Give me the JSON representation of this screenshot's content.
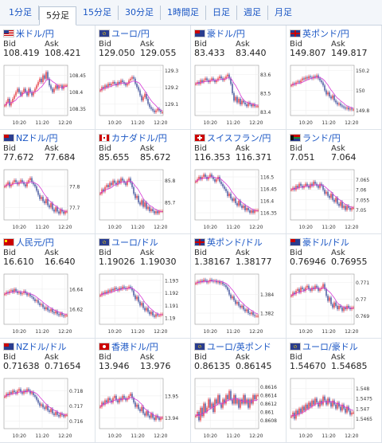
{
  "tabs": [
    {
      "label": "1分足",
      "active": false
    },
    {
      "label": "5分足",
      "active": true
    },
    {
      "label": "15分足",
      "active": false
    },
    {
      "label": "30分足",
      "active": false
    },
    {
      "label": "1時間足",
      "active": false
    },
    {
      "label": "日足",
      "active": false
    },
    {
      "label": "週足",
      "active": false
    },
    {
      "label": "月足",
      "active": false
    }
  ],
  "labels": {
    "bid": "Bid",
    "ask": "Ask"
  },
  "x_ticks": [
    "10:20",
    "11:20",
    "12:20"
  ],
  "colors": {
    "up": "#e0242c",
    "down": "#2a3d8f",
    "ma": "#d63ad6",
    "link": "#1a56c4"
  },
  "pairs": [
    {
      "title": "米ドル/円",
      "flag": "us",
      "bid": "108.419",
      "ask": "108.421",
      "y_ticks": [
        "108.45",
        "108.4",
        "108.35"
      ],
      "ylim": [
        108.33,
        108.48
      ],
      "closes": [
        108.36,
        108.37,
        108.38,
        108.36,
        108.37,
        108.38,
        108.39,
        108.4,
        108.41,
        108.4,
        108.39,
        108.4,
        108.41,
        108.4,
        108.39,
        108.41,
        108.4,
        108.39,
        108.4,
        108.41,
        108.42,
        108.43,
        108.44,
        108.43,
        108.45,
        108.44,
        108.46,
        108.44,
        108.42,
        108.41,
        108.4,
        108.41,
        108.42,
        108.41,
        108.42,
        108.42,
        108.41,
        108.42,
        108.42,
        108.42
      ]
    },
    {
      "title": "ユーロ/円",
      "flag": "eu",
      "bid": "129.050",
      "ask": "129.055",
      "y_ticks": [
        "129.3",
        "129.2",
        "129.1"
      ],
      "ylim": [
        129.03,
        129.33
      ],
      "closes": [
        129.18,
        129.2,
        129.19,
        129.21,
        129.2,
        129.22,
        129.21,
        129.22,
        129.23,
        129.22,
        129.21,
        129.23,
        129.22,
        129.24,
        129.23,
        129.22,
        129.21,
        129.22,
        129.24,
        129.25,
        129.26,
        129.25,
        129.22,
        129.2,
        129.18,
        129.15,
        129.12,
        129.14,
        129.16,
        129.13,
        129.1,
        129.08,
        129.07,
        129.06,
        129.05,
        129.06,
        129.07,
        129.06,
        129.05,
        129.05
      ]
    },
    {
      "title": "豪ドル/円",
      "flag": "au",
      "bid": "83.433",
      "ask": "83.440",
      "y_ticks": [
        "83.6",
        "83.5",
        "83.4"
      ],
      "ylim": [
        83.38,
        83.65
      ],
      "closes": [
        83.55,
        83.56,
        83.55,
        83.57,
        83.56,
        83.57,
        83.58,
        83.57,
        83.56,
        83.57,
        83.58,
        83.57,
        83.56,
        83.57,
        83.58,
        83.59,
        83.58,
        83.57,
        83.58,
        83.59,
        83.6,
        83.58,
        83.55,
        83.5,
        83.46,
        83.48,
        83.45,
        83.47,
        83.44,
        83.46,
        83.45,
        83.44,
        83.43,
        83.45,
        83.44,
        83.43,
        83.44,
        83.43,
        83.43,
        83.43
      ]
    },
    {
      "title": "英ポンド/円",
      "flag": "gb",
      "bid": "149.807",
      "ask": "149.817",
      "y_ticks": [
        "150.2",
        "150",
        "149.8"
      ],
      "ylim": [
        149.75,
        150.25
      ],
      "closes": [
        150.05,
        150.07,
        150.06,
        150.08,
        150.09,
        150.08,
        150.1,
        150.12,
        150.11,
        150.13,
        150.12,
        150.14,
        150.13,
        150.12,
        150.14,
        150.13,
        150.15,
        150.12,
        150.1,
        150.08,
        150.05,
        150.0,
        149.96,
        149.98,
        149.94,
        149.92,
        149.95,
        149.9,
        149.88,
        149.86,
        149.87,
        149.85,
        149.84,
        149.83,
        149.82,
        149.83,
        149.81,
        149.82,
        149.81,
        149.81
      ]
    },
    {
      "title": "NZドル/円",
      "flag": "nz",
      "bid": "77.672",
      "ask": "77.684",
      "y_ticks": [
        "77.8",
        "77.7"
      ],
      "ylim": [
        77.64,
        77.88
      ],
      "closes": [
        77.8,
        77.81,
        77.82,
        77.8,
        77.81,
        77.82,
        77.83,
        77.82,
        77.81,
        77.82,
        77.83,
        77.82,
        77.81,
        77.8,
        77.82,
        77.83,
        77.84,
        77.82,
        77.81,
        77.8,
        77.78,
        77.76,
        77.74,
        77.75,
        77.73,
        77.72,
        77.74,
        77.71,
        77.7,
        77.72,
        77.69,
        77.68,
        77.7,
        77.68,
        77.67,
        77.69,
        77.68,
        77.67,
        77.68,
        77.68
      ]
    },
    {
      "title": "カナダドル/円",
      "flag": "ca",
      "bid": "85.655",
      "ask": "85.672",
      "y_ticks": [
        "85.8",
        "85.7"
      ],
      "ylim": [
        85.62,
        85.85
      ],
      "closes": [
        85.74,
        85.76,
        85.75,
        85.77,
        85.78,
        85.77,
        85.79,
        85.78,
        85.8,
        85.79,
        85.78,
        85.8,
        85.79,
        85.81,
        85.8,
        85.79,
        85.78,
        85.8,
        85.81,
        85.79,
        85.77,
        85.74,
        85.72,
        85.73,
        85.7,
        85.69,
        85.71,
        85.68,
        85.7,
        85.67,
        85.68,
        85.66,
        85.67,
        85.66,
        85.65,
        85.66,
        85.65,
        85.66,
        85.66,
        85.66
      ]
    },
    {
      "title": "スイスフラン/円",
      "flag": "ch",
      "bid": "116.353",
      "ask": "116.371",
      "y_ticks": [
        "116.5",
        "116.45",
        "116.4",
        "116.35"
      ],
      "ylim": [
        116.32,
        116.53
      ],
      "closes": [
        116.48,
        116.49,
        116.5,
        116.49,
        116.5,
        116.51,
        116.5,
        116.49,
        116.5,
        116.51,
        116.5,
        116.49,
        116.48,
        116.49,
        116.5,
        116.48,
        116.47,
        116.46,
        116.45,
        116.44,
        116.42,
        116.43,
        116.41,
        116.4,
        116.41,
        116.39,
        116.38,
        116.4,
        116.38,
        116.37,
        116.38,
        116.36,
        116.37,
        116.36,
        116.35,
        116.36,
        116.35,
        116.36,
        116.36,
        116.36
      ]
    },
    {
      "title": "ランド/円",
      "flag": "za",
      "bid": "7.051",
      "ask": "7.064",
      "y_ticks": [
        "7.065",
        "7.06",
        "7.055",
        "7.05"
      ],
      "ylim": [
        7.045,
        7.07
      ],
      "closes": [
        7.06,
        7.061,
        7.06,
        7.062,
        7.061,
        7.063,
        7.062,
        7.061,
        7.062,
        7.063,
        7.062,
        7.061,
        7.063,
        7.062,
        7.064,
        7.063,
        7.062,
        7.061,
        7.063,
        7.062,
        7.06,
        7.058,
        7.059,
        7.057,
        7.056,
        7.058,
        7.055,
        7.054,
        7.056,
        7.053,
        7.052,
        7.054,
        7.051,
        7.052,
        7.05,
        7.052,
        7.051,
        7.05,
        7.051,
        7.051
      ]
    },
    {
      "title": "人民元/円",
      "flag": "cn",
      "bid": "16.610",
      "ask": "16.640",
      "y_ticks": [
        "16.64",
        "16.62"
      ],
      "ylim": [
        16.605,
        16.655
      ],
      "closes": [
        16.635,
        16.637,
        16.636,
        16.638,
        16.639,
        16.637,
        16.64,
        16.638,
        16.636,
        16.637,
        16.635,
        16.636,
        16.638,
        16.636,
        16.634,
        16.635,
        16.633,
        16.632,
        16.63,
        16.628,
        16.629,
        16.626,
        16.624,
        16.625,
        16.622,
        16.62,
        16.622,
        16.619,
        16.618,
        16.62,
        16.617,
        16.616,
        16.618,
        16.615,
        16.614,
        16.616,
        16.614,
        16.613,
        16.614,
        16.614
      ]
    },
    {
      "title": "ユーロ/ドル",
      "flag": "eu",
      "bid": "1.19026",
      "ask": "1.19030",
      "y_ticks": [
        "1.193",
        "1.192",
        "1.191",
        "1.19"
      ],
      "ylim": [
        1.1895,
        1.1935
      ],
      "closes": [
        1.1918,
        1.192,
        1.1919,
        1.1921,
        1.192,
        1.1922,
        1.1921,
        1.1923,
        1.1922,
        1.1924,
        1.1923,
        1.1922,
        1.1924,
        1.1923,
        1.1925,
        1.1924,
        1.1923,
        1.1924,
        1.1925,
        1.1924,
        1.1922,
        1.1918,
        1.1915,
        1.1917,
        1.1913,
        1.191,
        1.1912,
        1.1908,
        1.1906,
        1.1908,
        1.1905,
        1.1903,
        1.1905,
        1.1902,
        1.1901,
        1.1903,
        1.1902,
        1.1902,
        1.1903,
        1.1903
      ]
    },
    {
      "title": "英ポンド/ドル",
      "flag": "gb",
      "bid": "1.38167",
      "ask": "1.38177",
      "y_ticks": [
        "1.384",
        "1.382"
      ],
      "ylim": [
        1.3808,
        1.3862
      ],
      "closes": [
        1.3852,
        1.3854,
        1.3853,
        1.3855,
        1.3854,
        1.3856,
        1.3855,
        1.3853,
        1.3854,
        1.3856,
        1.3855,
        1.3854,
        1.3855,
        1.3853,
        1.3854,
        1.3852,
        1.3853,
        1.3851,
        1.385,
        1.3848,
        1.3845,
        1.384,
        1.3836,
        1.3838,
        1.3834,
        1.383,
        1.3832,
        1.3828,
        1.3826,
        1.3828,
        1.3824,
        1.3822,
        1.3824,
        1.382,
        1.3819,
        1.3821,
        1.3818,
        1.3817,
        1.3817,
        1.3817
      ]
    },
    {
      "title": "豪ドル/ドル",
      "flag": "au",
      "bid": "0.76946",
      "ask": "0.76955",
      "y_ticks": [
        "0.771",
        "0.77",
        "0.769"
      ],
      "ylim": [
        0.7685,
        0.7715
      ],
      "closes": [
        0.7702,
        0.7704,
        0.7703,
        0.7705,
        0.7706,
        0.7704,
        0.7707,
        0.7706,
        0.7705,
        0.7707,
        0.7708,
        0.7706,
        0.7705,
        0.7707,
        0.7706,
        0.7708,
        0.7707,
        0.7705,
        0.7706,
        0.7707,
        0.7709,
        0.7706,
        0.7702,
        0.7699,
        0.7701,
        0.7697,
        0.7695,
        0.7698,
        0.7696,
        0.7694,
        0.7696,
        0.7695,
        0.7693,
        0.7695,
        0.7694,
        0.7696,
        0.7695,
        0.7694,
        0.7695,
        0.7695
      ]
    },
    {
      "title": "NZドル/ドル",
      "flag": "nz",
      "bid": "0.71638",
      "ask": "0.71654",
      "y_ticks": [
        "0.718",
        "0.717",
        "0.716"
      ],
      "ylim": [
        0.7155,
        0.7188
      ],
      "closes": [
        0.7176,
        0.7178,
        0.7177,
        0.7179,
        0.7178,
        0.718,
        0.7179,
        0.7178,
        0.718,
        0.7181,
        0.7179,
        0.7178,
        0.718,
        0.7179,
        0.7181,
        0.718,
        0.7178,
        0.7179,
        0.7177,
        0.7176,
        0.7174,
        0.7172,
        0.717,
        0.7171,
        0.7169,
        0.7168,
        0.717,
        0.7167,
        0.7166,
        0.7168,
        0.7165,
        0.7164,
        0.7166,
        0.7164,
        0.7163,
        0.7165,
        0.7164,
        0.7163,
        0.7164,
        0.7164
      ]
    },
    {
      "title": "香港ドル/円",
      "flag": "hk",
      "bid": "13.946",
      "ask": "13.976",
      "y_ticks": [
        "13.95",
        "13.94"
      ],
      "ylim": [
        13.935,
        13.958
      ],
      "closes": [
        13.945,
        13.947,
        13.946,
        13.948,
        13.947,
        13.949,
        13.948,
        13.947,
        13.949,
        13.95,
        13.948,
        13.947,
        13.949,
        13.948,
        13.95,
        13.949,
        13.948,
        13.949,
        13.95,
        13.951,
        13.949,
        13.947,
        13.945,
        13.946,
        13.944,
        13.943,
        13.945,
        13.942,
        13.941,
        13.943,
        13.941,
        13.94,
        13.942,
        13.94,
        13.939,
        13.941,
        13.94,
        13.939,
        13.94,
        13.94
      ]
    },
    {
      "title": "ユーロ/英ポンド",
      "flag": "eu",
      "bid": "0.86135",
      "ask": "0.86145",
      "y_ticks": [
        "0.8616",
        "0.8614",
        "0.8612",
        "0.861",
        "0.8608"
      ],
      "ylim": [
        0.8606,
        0.8618
      ],
      "closes": [
        0.8609,
        0.861,
        0.8608,
        0.8611,
        0.8609,
        0.8612,
        0.861,
        0.8611,
        0.8613,
        0.8611,
        0.8612,
        0.861,
        0.8613,
        0.8612,
        0.8614,
        0.8612,
        0.8611,
        0.8613,
        0.8612,
        0.8614,
        0.8613,
        0.8615,
        0.8613,
        0.8612,
        0.8614,
        0.8612,
        0.8613,
        0.8611,
        0.8613,
        0.8612,
        0.8614,
        0.8612,
        0.8613,
        0.8611,
        0.8613,
        0.8612,
        0.8614,
        0.8613,
        0.8614,
        0.8614
      ]
    },
    {
      "title": "ユーロ/豪ドル",
      "flag": "eu",
      "bid": "1.54670",
      "ask": "1.54685",
      "y_ticks": [
        "1.548",
        "1.5475",
        "1.547",
        "1.5465"
      ],
      "ylim": [
        1.546,
        1.5485
      ],
      "closes": [
        1.5466,
        1.5468,
        1.5465,
        1.5469,
        1.5467,
        1.547,
        1.5468,
        1.5471,
        1.5469,
        1.5472,
        1.547,
        1.5473,
        1.5471,
        1.5474,
        1.5472,
        1.5475,
        1.5473,
        1.5471,
        1.5474,
        1.5472,
        1.5476,
        1.5474,
        1.5472,
        1.5475,
        1.5473,
        1.5471,
        1.5474,
        1.5472,
        1.547,
        1.5473,
        1.5471,
        1.5469,
        1.5472,
        1.547,
        1.5468,
        1.5471,
        1.5469,
        1.5467,
        1.5468,
        1.5468
      ]
    }
  ]
}
